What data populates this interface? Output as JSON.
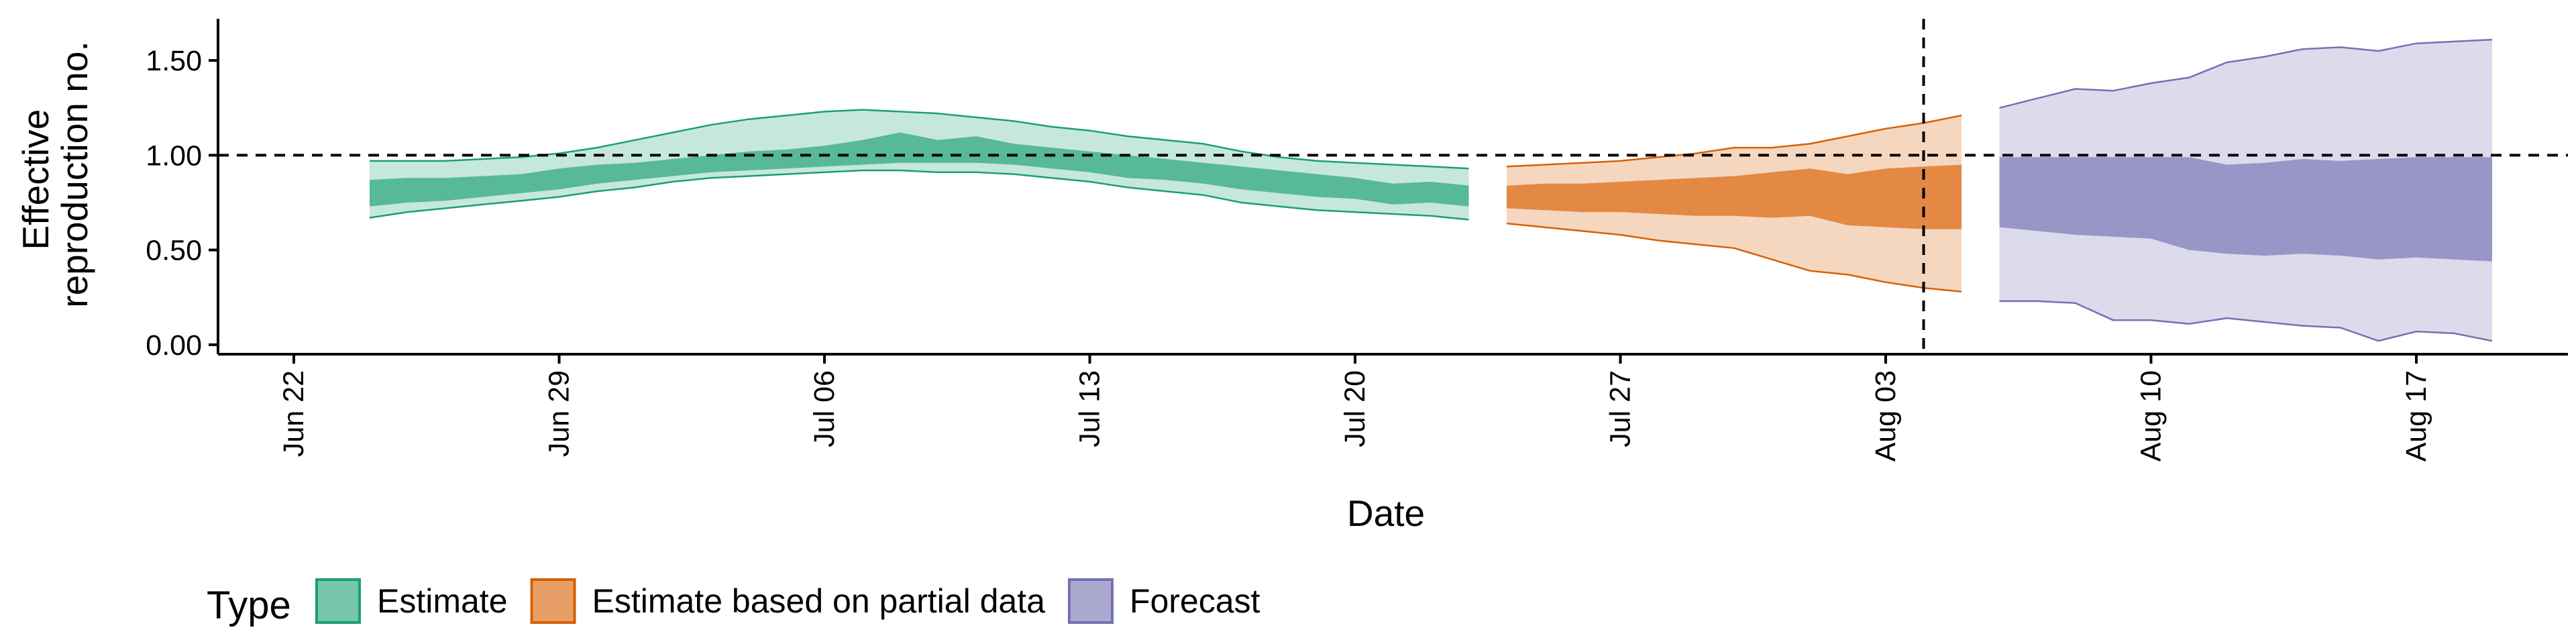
{
  "chart_data": {
    "type": "area",
    "xlabel": "Date",
    "ylabel": "Effective reproduction no.",
    "ylabel_lines": [
      "Effective",
      "reproduction no."
    ],
    "x_range": [
      "2020-06-20",
      "2020-08-21"
    ],
    "ylim": [
      -0.05,
      1.72
    ],
    "x_ticks": [
      {
        "date": "2020-06-22",
        "label": "Jun 22"
      },
      {
        "date": "2020-06-29",
        "label": "Jun 29"
      },
      {
        "date": "2020-07-06",
        "label": "Jul 06"
      },
      {
        "date": "2020-07-13",
        "label": "Jul 13"
      },
      {
        "date": "2020-07-20",
        "label": "Jul 20"
      },
      {
        "date": "2020-07-27",
        "label": "Jul 27"
      },
      {
        "date": "2020-08-03",
        "label": "Aug 03"
      },
      {
        "date": "2020-08-10",
        "label": "Aug 10"
      },
      {
        "date": "2020-08-17",
        "label": "Aug 17"
      }
    ],
    "y_ticks": [
      {
        "value": 0,
        "label": "0.00"
      },
      {
        "value": 0.5,
        "label": "0.50"
      },
      {
        "value": 1.0,
        "label": "1.00"
      },
      {
        "value": 1.5,
        "label": "1.50"
      }
    ],
    "reference_line_y": 1.0,
    "reference_line_date": "2020-08-04",
    "grid": false,
    "legend": {
      "title": "Type",
      "position": "bottom",
      "entries": [
        {
          "label": "Estimate",
          "fill": "#1b9e77",
          "border": "#1b9e77"
        },
        {
          "label": "Estimate based on partial data",
          "fill": "#d95f02",
          "border": "#d95f02"
        },
        {
          "label": "Forecast",
          "fill": "#7570b3",
          "border": "#7570b3"
        }
      ]
    },
    "series": [
      {
        "type": "Estimate",
        "color": "#1b9e77",
        "points": [
          {
            "x": "2020-06-24",
            "lo90": 0.67,
            "lo50": 0.73,
            "hi50": 0.87,
            "hi90": 0.97
          },
          {
            "x": "2020-06-25",
            "lo90": 0.7,
            "lo50": 0.75,
            "hi50": 0.88,
            "hi90": 0.97
          },
          {
            "x": "2020-06-26",
            "lo90": 0.72,
            "lo50": 0.76,
            "hi50": 0.88,
            "hi90": 0.97
          },
          {
            "x": "2020-06-27",
            "lo90": 0.74,
            "lo50": 0.78,
            "hi50": 0.89,
            "hi90": 0.98
          },
          {
            "x": "2020-06-28",
            "lo90": 0.76,
            "lo50": 0.8,
            "hi50": 0.9,
            "hi90": 0.99
          },
          {
            "x": "2020-06-29",
            "lo90": 0.78,
            "lo50": 0.82,
            "hi50": 0.93,
            "hi90": 1.01
          },
          {
            "x": "2020-06-30",
            "lo90": 0.81,
            "lo50": 0.85,
            "hi50": 0.95,
            "hi90": 1.04
          },
          {
            "x": "2020-07-01",
            "lo90": 0.83,
            "lo50": 0.87,
            "hi50": 0.96,
            "hi90": 1.08
          },
          {
            "x": "2020-07-02",
            "lo90": 0.86,
            "lo50": 0.89,
            "hi50": 0.98,
            "hi90": 1.12
          },
          {
            "x": "2020-07-03",
            "lo90": 0.88,
            "lo50": 0.91,
            "hi50": 1.0,
            "hi90": 1.16
          },
          {
            "x": "2020-07-04",
            "lo90": 0.89,
            "lo50": 0.92,
            "hi50": 1.02,
            "hi90": 1.19
          },
          {
            "x": "2020-07-05",
            "lo90": 0.9,
            "lo50": 0.93,
            "hi50": 1.03,
            "hi90": 1.21
          },
          {
            "x": "2020-07-06",
            "lo90": 0.91,
            "lo50": 0.94,
            "hi50": 1.05,
            "hi90": 1.23
          },
          {
            "x": "2020-07-07",
            "lo90": 0.92,
            "lo50": 0.95,
            "hi50": 1.08,
            "hi90": 1.24
          },
          {
            "x": "2020-07-08",
            "lo90": 0.92,
            "lo50": 0.96,
            "hi50": 1.12,
            "hi90": 1.23
          },
          {
            "x": "2020-07-09",
            "lo90": 0.91,
            "lo50": 0.96,
            "hi50": 1.08,
            "hi90": 1.22
          },
          {
            "x": "2020-07-10",
            "lo90": 0.91,
            "lo50": 0.96,
            "hi50": 1.1,
            "hi90": 1.2
          },
          {
            "x": "2020-07-11",
            "lo90": 0.9,
            "lo50": 0.95,
            "hi50": 1.06,
            "hi90": 1.18
          },
          {
            "x": "2020-07-12",
            "lo90": 0.88,
            "lo50": 0.93,
            "hi50": 1.04,
            "hi90": 1.15
          },
          {
            "x": "2020-07-13",
            "lo90": 0.86,
            "lo50": 0.91,
            "hi50": 1.02,
            "hi90": 1.13
          },
          {
            "x": "2020-07-14",
            "lo90": 0.83,
            "lo50": 0.88,
            "hi50": 1.0,
            "hi90": 1.1
          },
          {
            "x": "2020-07-15",
            "lo90": 0.81,
            "lo50": 0.87,
            "hi50": 0.98,
            "hi90": 1.08
          },
          {
            "x": "2020-07-16",
            "lo90": 0.79,
            "lo50": 0.85,
            "hi50": 0.96,
            "hi90": 1.06
          },
          {
            "x": "2020-07-17",
            "lo90": 0.75,
            "lo50": 0.82,
            "hi50": 0.94,
            "hi90": 1.02
          },
          {
            "x": "2020-07-18",
            "lo90": 0.73,
            "lo50": 0.8,
            "hi50": 0.92,
            "hi90": 0.99
          },
          {
            "x": "2020-07-19",
            "lo90": 0.71,
            "lo50": 0.78,
            "hi50": 0.9,
            "hi90": 0.97
          },
          {
            "x": "2020-07-20",
            "lo90": 0.7,
            "lo50": 0.77,
            "hi50": 0.88,
            "hi90": 0.96
          },
          {
            "x": "2020-07-21",
            "lo90": 0.69,
            "lo50": 0.74,
            "hi50": 0.85,
            "hi90": 0.95
          },
          {
            "x": "2020-07-22",
            "lo90": 0.68,
            "lo50": 0.75,
            "hi50": 0.86,
            "hi90": 0.94
          },
          {
            "x": "2020-07-23",
            "lo90": 0.66,
            "lo50": 0.73,
            "hi50": 0.84,
            "hi90": 0.93
          }
        ]
      },
      {
        "type": "Estimate based on partial data",
        "color": "#d95f02",
        "points": [
          {
            "x": "2020-07-24",
            "lo90": 0.64,
            "lo50": 0.72,
            "hi50": 0.84,
            "hi90": 0.94
          },
          {
            "x": "2020-07-25",
            "lo90": 0.62,
            "lo50": 0.71,
            "hi50": 0.85,
            "hi90": 0.95
          },
          {
            "x": "2020-07-26",
            "lo90": 0.6,
            "lo50": 0.7,
            "hi50": 0.85,
            "hi90": 0.96
          },
          {
            "x": "2020-07-27",
            "lo90": 0.58,
            "lo50": 0.7,
            "hi50": 0.86,
            "hi90": 0.97
          },
          {
            "x": "2020-07-28",
            "lo90": 0.55,
            "lo50": 0.69,
            "hi50": 0.87,
            "hi90": 0.99
          },
          {
            "x": "2020-07-29",
            "lo90": 0.53,
            "lo50": 0.68,
            "hi50": 0.88,
            "hi90": 1.01
          },
          {
            "x": "2020-07-30",
            "lo90": 0.51,
            "lo50": 0.68,
            "hi50": 0.89,
            "hi90": 1.04
          },
          {
            "x": "2020-07-31",
            "lo90": 0.45,
            "lo50": 0.67,
            "hi50": 0.91,
            "hi90": 1.04
          },
          {
            "x": "2020-08-01",
            "lo90": 0.39,
            "lo50": 0.68,
            "hi50": 0.93,
            "hi90": 1.06
          },
          {
            "x": "2020-08-02",
            "lo90": 0.37,
            "lo50": 0.63,
            "hi50": 0.9,
            "hi90": 1.1
          },
          {
            "x": "2020-08-03",
            "lo90": 0.33,
            "lo50": 0.62,
            "hi50": 0.93,
            "hi90": 1.14
          },
          {
            "x": "2020-08-04",
            "lo90": 0.3,
            "lo50": 0.61,
            "hi50": 0.94,
            "hi90": 1.17
          },
          {
            "x": "2020-08-05",
            "lo90": 0.28,
            "lo50": 0.61,
            "hi50": 0.95,
            "hi90": 1.21
          }
        ]
      },
      {
        "type": "Forecast",
        "color": "#7570b3",
        "points": [
          {
            "x": "2020-08-06",
            "lo90": 0.23,
            "lo50": 0.62,
            "hi50": 0.99,
            "hi90": 1.25
          },
          {
            "x": "2020-08-07",
            "lo90": 0.23,
            "lo50": 0.6,
            "hi50": 0.99,
            "hi90": 1.3
          },
          {
            "x": "2020-08-08",
            "lo90": 0.22,
            "lo50": 0.58,
            "hi50": 0.99,
            "hi90": 1.35
          },
          {
            "x": "2020-08-09",
            "lo90": 0.13,
            "lo50": 0.57,
            "hi50": 0.99,
            "hi90": 1.34
          },
          {
            "x": "2020-08-10",
            "lo90": 0.13,
            "lo50": 0.56,
            "hi50": 0.99,
            "hi90": 1.38
          },
          {
            "x": "2020-08-11",
            "lo90": 0.11,
            "lo50": 0.5,
            "hi50": 0.99,
            "hi90": 1.41
          },
          {
            "x": "2020-08-12",
            "lo90": 0.14,
            "lo50": 0.48,
            "hi50": 0.95,
            "hi90": 1.49
          },
          {
            "x": "2020-08-13",
            "lo90": 0.12,
            "lo50": 0.47,
            "hi50": 0.96,
            "hi90": 1.52
          },
          {
            "x": "2020-08-14",
            "lo90": 0.1,
            "lo50": 0.48,
            "hi50": 0.98,
            "hi90": 1.56
          },
          {
            "x": "2020-08-15",
            "lo90": 0.09,
            "lo50": 0.47,
            "hi50": 0.97,
            "hi90": 1.57
          },
          {
            "x": "2020-08-16",
            "lo90": 0.02,
            "lo50": 0.45,
            "hi50": 0.98,
            "hi90": 1.55
          },
          {
            "x": "2020-08-17",
            "lo90": 0.07,
            "lo50": 0.46,
            "hi50": 0.99,
            "hi90": 1.59
          },
          {
            "x": "2020-08-18",
            "lo90": 0.06,
            "lo50": 0.45,
            "hi50": 0.99,
            "hi90": 1.6
          },
          {
            "x": "2020-08-19",
            "lo90": 0.02,
            "lo50": 0.44,
            "hi50": 0.99,
            "hi90": 1.61
          }
        ]
      }
    ]
  }
}
